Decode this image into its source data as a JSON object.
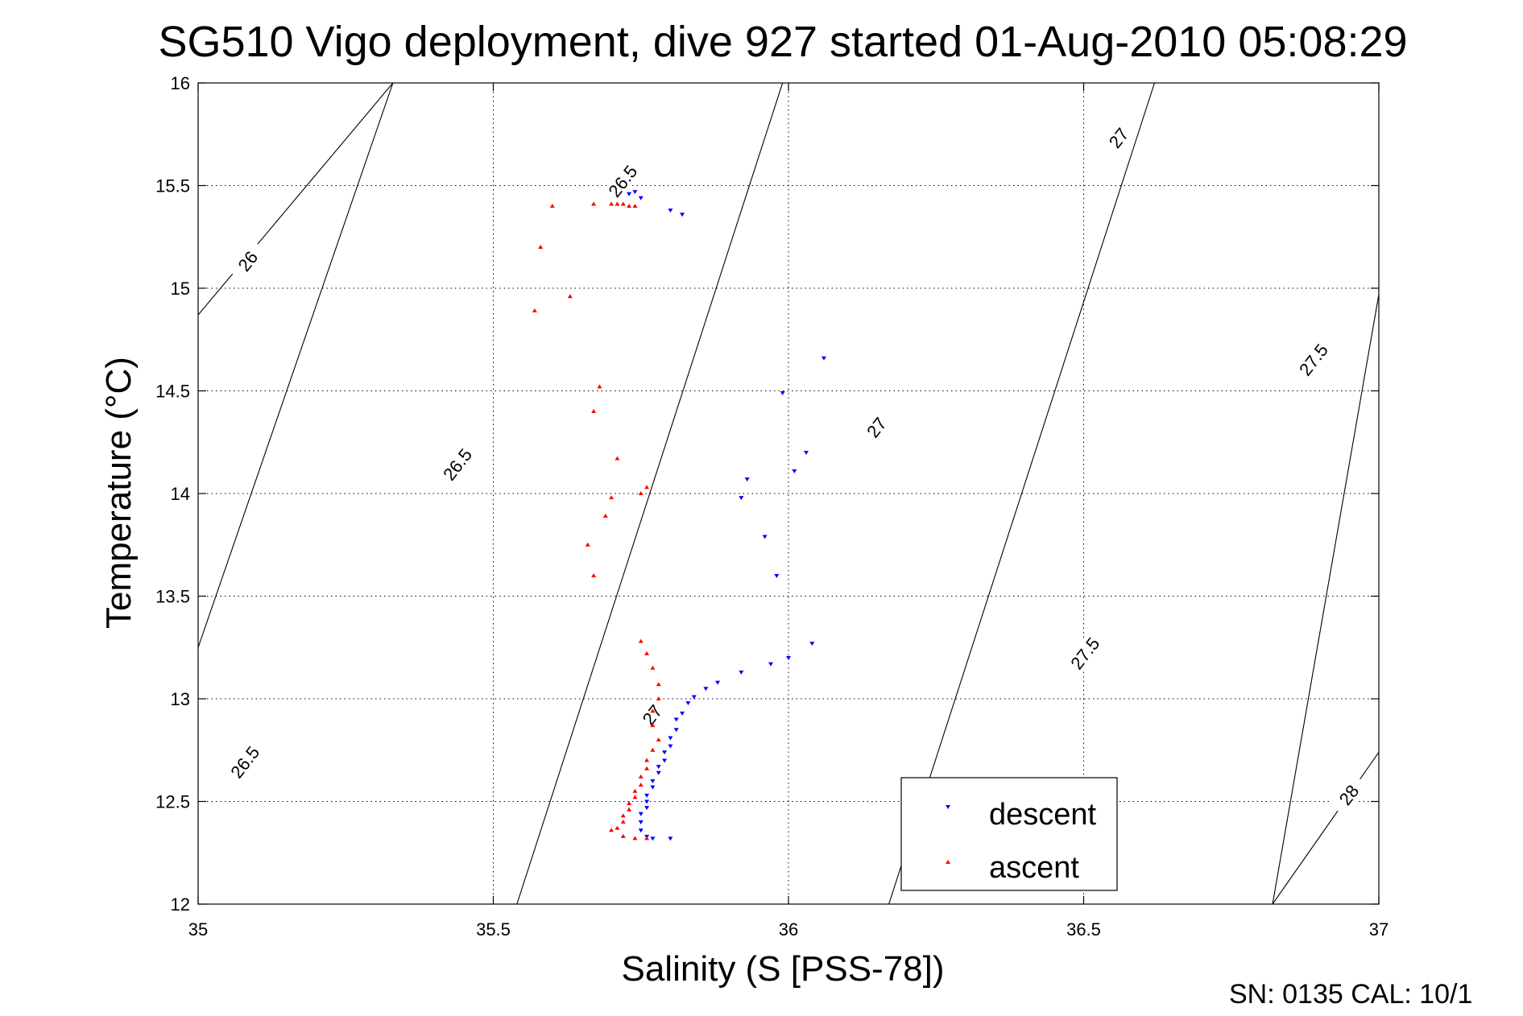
{
  "chart_data": {
    "type": "scatter",
    "title": "SG510 Vigo deployment, dive 927 started 01-Aug-2010 05:08:29",
    "xlabel": "Salinity (S [PSS-78])",
    "ylabel": "Temperature (°C)",
    "xlim": [
      35,
      37
    ],
    "ylim": [
      12,
      16
    ],
    "xticks": [
      "35",
      "35.5",
      "36",
      "36.5",
      "37"
    ],
    "yticks": [
      "12",
      "12.5",
      "13",
      "13.5",
      "14",
      "14.5",
      "15",
      "15.5",
      "16"
    ],
    "grid": true,
    "legend_position": "bottom-right",
    "footer": "SN: 0135  CAL: 10/1",
    "series": [
      {
        "name": "descent",
        "color": "#0000ff",
        "marker": "triangle-down",
        "x": [
          35.74,
          35.73,
          35.75,
          35.8,
          35.82,
          36.06,
          35.99,
          36.03,
          36.01,
          35.93,
          35.92,
          35.96,
          35.98,
          36.04,
          36.0,
          35.97,
          35.92,
          35.88,
          35.86,
          35.84,
          35.83,
          35.82,
          35.81,
          35.81,
          35.8,
          35.8,
          35.79,
          35.79,
          35.78,
          35.78,
          35.77,
          35.77,
          35.76,
          35.76,
          35.76,
          35.75,
          35.75,
          35.75,
          35.76,
          35.77,
          35.8
        ],
        "y": [
          15.47,
          15.46,
          15.44,
          15.38,
          15.36,
          14.66,
          14.49,
          14.2,
          14.11,
          14.07,
          13.98,
          13.79,
          13.6,
          13.27,
          13.2,
          13.17,
          13.13,
          13.08,
          13.05,
          13.01,
          12.98,
          12.93,
          12.9,
          12.85,
          12.81,
          12.77,
          12.74,
          12.7,
          12.67,
          12.64,
          12.6,
          12.57,
          12.53,
          12.5,
          12.47,
          12.44,
          12.4,
          12.36,
          12.33,
          12.32,
          12.32
        ]
      },
      {
        "name": "ascent",
        "color": "#ff0000",
        "marker": "triangle-up",
        "x": [
          35.6,
          35.67,
          35.7,
          35.71,
          35.72,
          35.73,
          35.74,
          35.58,
          35.63,
          35.57,
          35.68,
          35.67,
          35.71,
          35.75,
          35.76,
          35.7,
          35.69,
          35.66,
          35.67,
          35.75,
          35.76,
          35.77,
          35.78,
          35.78,
          35.77,
          35.77,
          35.78,
          35.77,
          35.76,
          35.76,
          35.75,
          35.75,
          35.74,
          35.74,
          35.73,
          35.73,
          35.72,
          35.72,
          35.71,
          35.7,
          35.72,
          35.74,
          35.76
        ],
        "y": [
          15.4,
          15.41,
          15.41,
          15.41,
          15.41,
          15.4,
          15.4,
          15.2,
          14.96,
          14.89,
          14.52,
          14.4,
          14.17,
          14.0,
          14.03,
          13.98,
          13.89,
          13.75,
          13.6,
          13.28,
          13.22,
          13.15,
          13.07,
          13.0,
          12.94,
          12.87,
          12.8,
          12.75,
          12.7,
          12.66,
          12.62,
          12.58,
          12.55,
          12.52,
          12.49,
          12.46,
          12.43,
          12.4,
          12.37,
          12.36,
          12.33,
          12.32,
          12.32
        ]
      }
    ],
    "contour_labels": [
      "26",
      "26.5",
      "26.5",
      "26.5",
      "27",
      "27",
      "27",
      "27.5",
      "27.5",
      "28"
    ]
  }
}
